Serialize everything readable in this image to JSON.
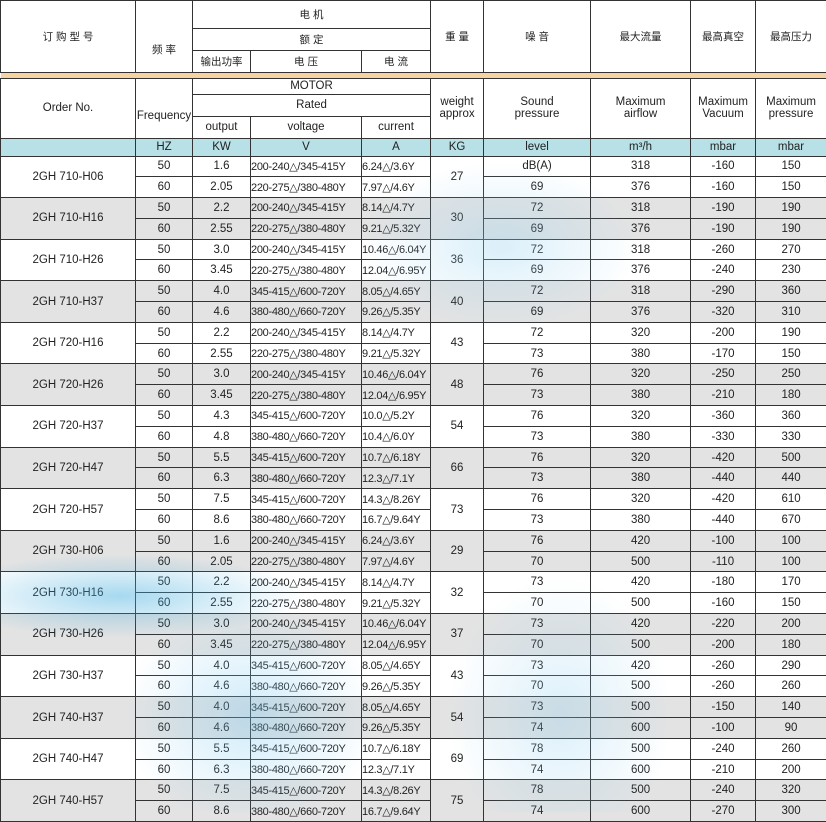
{
  "header_cn": {
    "order": "订 购 型 号",
    "freq": "频 率",
    "motor": "电 机",
    "rated": "额 定",
    "output": "输出功率",
    "voltage": "电 压",
    "current": "电 流",
    "weight": "重 量",
    "noise": "噪 音",
    "airflow": "最大流量",
    "vacuum": "最高真空",
    "pressure": "最高压力"
  },
  "header_en": {
    "order": "Order No.",
    "freq": "Frequency",
    "motor": "MOTOR",
    "rated": "Rated",
    "output": "output",
    "voltage": "voltage",
    "current": "current",
    "weight": "weight approx",
    "noise": "Sound pressure",
    "airflow": "Maximum airflow",
    "vacuum": "Maximum Vacuum",
    "pressure": "Maximum pressure"
  },
  "units": {
    "freq": "HZ",
    "output": "KW",
    "voltage": "V",
    "current": "A",
    "weight": "KG",
    "noise": "level",
    "airflow": "m³/h",
    "vacuum": "mbar",
    "pressure": "mbar"
  },
  "colors": {
    "band": "#f7d3a4",
    "units_bg": "#b7e1e6",
    "alt_row": "#dadada"
  },
  "models": [
    {
      "order": "2GH 710-H06",
      "weight": "27",
      "rows": [
        [
          "50",
          "1.6",
          "200-240△/345-415Y",
          "6.24△/3.6Y",
          "dB(A)",
          "318",
          "-160",
          "150"
        ],
        [
          "60",
          "2.05",
          "220-275△/380-480Y",
          "7.97△/4.6Y",
          "69",
          "376",
          "-160",
          "150"
        ]
      ]
    },
    {
      "order": "2GH 710-H16",
      "weight": "30",
      "rows": [
        [
          "50",
          "2.2",
          "200-240△/345-415Y",
          "8.14△/4.7Y",
          "72",
          "318",
          "-190",
          "190"
        ],
        [
          "60",
          "2.55",
          "220-275△/380-480Y",
          "9.21△/5.32Y",
          "69",
          "376",
          "-190",
          "190"
        ]
      ]
    },
    {
      "order": "2GH 710-H26",
      "weight": "36",
      "rows": [
        [
          "50",
          "3.0",
          "200-240△/345-415Y",
          "10.46△/6.04Y",
          "72",
          "318",
          "-260",
          "270"
        ],
        [
          "60",
          "3.45",
          "220-275△/380-480Y",
          "12.04△/6.95Y",
          "69",
          "376",
          "-240",
          "230"
        ]
      ]
    },
    {
      "order": "2GH 710-H37",
      "weight": "40",
      "rows": [
        [
          "50",
          "4.0",
          "345-415△/600-720Y",
          "8.05△/4.65Y",
          "72",
          "318",
          "-290",
          "360"
        ],
        [
          "60",
          "4.6",
          "380-480△/660-720Y",
          "9.26△/5.35Y",
          "69",
          "376",
          "-320",
          "310"
        ]
      ]
    },
    {
      "order": "2GH 720-H16",
      "weight": "43",
      "rows": [
        [
          "50",
          "2.2",
          "200-240△/345-415Y",
          "8.14△/4.7Y",
          "72",
          "320",
          "-200",
          "190"
        ],
        [
          "60",
          "2.55",
          "220-275△/380-480Y",
          "9.21△/5.32Y",
          "73",
          "380",
          "-170",
          "150"
        ]
      ]
    },
    {
      "order": "2GH 720-H26",
      "weight": "48",
      "rows": [
        [
          "50",
          "3.0",
          "200-240△/345-415Y",
          "10.46△/6.04Y",
          "76",
          "320",
          "-250",
          "250"
        ],
        [
          "60",
          "3.45",
          "220-275△/380-480Y",
          "12.04△/6.95Y",
          "73",
          "380",
          "-210",
          "180"
        ]
      ]
    },
    {
      "order": "2GH 720-H37",
      "weight": "54",
      "rows": [
        [
          "50",
          "4.3",
          "345-415△/600-720Y",
          "10.0△/5.2Y",
          "76",
          "320",
          "-360",
          "360"
        ],
        [
          "60",
          "4.8",
          "380-480△/660-720Y",
          "10.4△/6.0Y",
          "73",
          "380",
          "-330",
          "330"
        ]
      ]
    },
    {
      "order": "2GH 720-H47",
      "weight": "66",
      "rows": [
        [
          "50",
          "5.5",
          "345-415△/600-720Y",
          "10.7△/6.18Y",
          "76",
          "320",
          "-420",
          "500"
        ],
        [
          "60",
          "6.3",
          "380-480△/660-720Y",
          "12.3△/7.1Y",
          "73",
          "380",
          "-440",
          "440"
        ]
      ]
    },
    {
      "order": "2GH 720-H57",
      "weight": "73",
      "rows": [
        [
          "50",
          "7.5",
          "345-415△/600-720Y",
          "14.3△/8.26Y",
          "76",
          "320",
          "-420",
          "610"
        ],
        [
          "60",
          "8.6",
          "380-480△/660-720Y",
          "16.7△/9.64Y",
          "73",
          "380",
          "-440",
          "670"
        ]
      ]
    },
    {
      "order": "2GH 730-H06",
      "weight": "29",
      "rows": [
        [
          "50",
          "1.6",
          "200-240△/345-415Y",
          "6.24△/3.6Y",
          "76",
          "420",
          "-100",
          "100"
        ],
        [
          "60",
          "2.05",
          "220-275△/380-480Y",
          "7.97△/4.6Y",
          "70",
          "500",
          "-110",
          "100"
        ]
      ]
    },
    {
      "order": "2GH 730-H16",
      "weight": "32",
      "rows": [
        [
          "50",
          "2.2",
          "200-240△/345-415Y",
          "8.14△/4.7Y",
          "73",
          "420",
          "-180",
          "170"
        ],
        [
          "60",
          "2.55",
          "220-275△/380-480Y",
          "9.21△/5.32Y",
          "70",
          "500",
          "-160",
          "150"
        ]
      ]
    },
    {
      "order": "2GH 730-H26",
      "weight": "37",
      "rows": [
        [
          "50",
          "3.0",
          "200-240△/345-415Y",
          "10.46△/6.04Y",
          "73",
          "420",
          "-220",
          "200"
        ],
        [
          "60",
          "3.45",
          "220-275△/380-480Y",
          "12.04△/6.95Y",
          "70",
          "500",
          "-200",
          "180"
        ]
      ]
    },
    {
      "order": "2GH 730-H37",
      "weight": "43",
      "rows": [
        [
          "50",
          "4.0",
          "345-415△/600-720Y",
          "8.05△/4.65Y",
          "73",
          "420",
          "-260",
          "290"
        ],
        [
          "60",
          "4.6",
          "380-480△/660-720Y",
          "9.26△/5.35Y",
          "70",
          "500",
          "-260",
          "260"
        ]
      ]
    },
    {
      "order": "2GH 740-H37",
      "weight": "54",
      "rows": [
        [
          "50",
          "4.0",
          "345-415△/600-720Y",
          "8.05△/4.65Y",
          "73",
          "500",
          "-150",
          "140"
        ],
        [
          "60",
          "4.6",
          "380-480△/660-720Y",
          "9.26△/5.35Y",
          "74",
          "600",
          "-100",
          "90"
        ]
      ]
    },
    {
      "order": "2GH 740-H47",
      "weight": "69",
      "rows": [
        [
          "50",
          "5.5",
          "345-415△/600-720Y",
          "10.7△/6.18Y",
          "78",
          "500",
          "-240",
          "260"
        ],
        [
          "60",
          "6.3",
          "380-480△/660-720Y",
          "12.3△/7.1Y",
          "74",
          "600",
          "-210",
          "200"
        ]
      ]
    },
    {
      "order": "2GH 740-H57",
      "weight": "75",
      "rows": [
        [
          "50",
          "7.5",
          "345-415△/600-720Y",
          "14.3△/8.26Y",
          "78",
          "500",
          "-240",
          "320"
        ],
        [
          "60",
          "8.6",
          "380-480△/660-720Y",
          "16.7△/9.64Y",
          "74",
          "600",
          "-270",
          "300"
        ]
      ]
    }
  ]
}
